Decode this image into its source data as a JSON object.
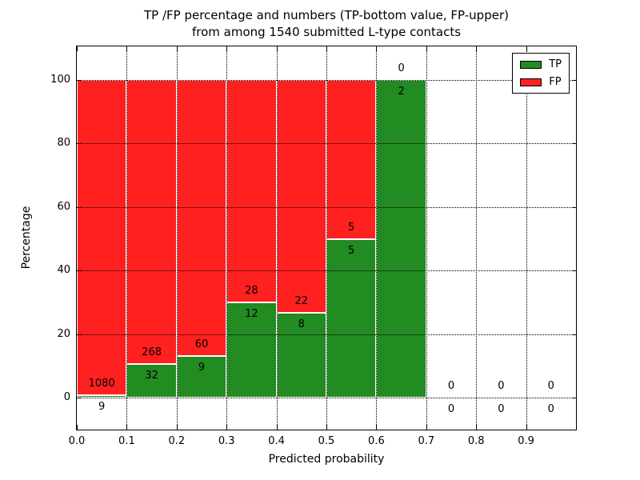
{
  "chart_data": {
    "type": "bar",
    "stacked": true,
    "normalized": "each bin scaled to 100 percent, TP bottom / FP top",
    "title_line1": "TP /FP percentage and numbers (TP-bottom value, FP-upper)",
    "title_line2": "from among 1540 submitted L-type contacts",
    "xlabel": "Predicted probability",
    "ylabel": "Percentage",
    "xlim": [
      0.0,
      1.0
    ],
    "ylim_percent": [
      -10,
      110
    ],
    "bin_width": 0.1,
    "x_tick_labels": [
      "0.0",
      "0.1",
      "0.2",
      "0.3",
      "0.4",
      "0.5",
      "0.6",
      "0.7",
      "0.8",
      "0.9"
    ],
    "y_ticks": [
      0,
      20,
      40,
      60,
      80,
      100
    ],
    "grid": "dotted both axes",
    "legend": {
      "position": "upper right",
      "entries": [
        {
          "label": "TP",
          "color": "#228b22"
        },
        {
          "label": "FP",
          "color": "#ff2020"
        }
      ]
    },
    "bins": [
      {
        "range": [
          0.0,
          0.1
        ],
        "tp": 9,
        "fp": 1080,
        "tp_percent": 0.83
      },
      {
        "range": [
          0.1,
          0.2
        ],
        "tp": 32,
        "fp": 268,
        "tp_percent": 10.67
      },
      {
        "range": [
          0.2,
          0.3
        ],
        "tp": 9,
        "fp": 60,
        "tp_percent": 13.04
      },
      {
        "range": [
          0.3,
          0.4
        ],
        "tp": 12,
        "fp": 28,
        "tp_percent": 30.0
      },
      {
        "range": [
          0.4,
          0.5
        ],
        "tp": 8,
        "fp": 22,
        "tp_percent": 26.67
      },
      {
        "range": [
          0.5,
          0.6
        ],
        "tp": 5,
        "fp": 5,
        "tp_percent": 50.0
      },
      {
        "range": [
          0.6,
          0.7
        ],
        "tp": 2,
        "fp": 0,
        "tp_percent": 100.0
      },
      {
        "range": [
          0.7,
          0.8
        ],
        "tp": 0,
        "fp": 0,
        "tp_percent": null
      },
      {
        "range": [
          0.8,
          0.9
        ],
        "tp": 0,
        "fp": 0,
        "tp_percent": null
      },
      {
        "range": [
          0.9,
          1.0
        ],
        "tp": 0,
        "fp": 0,
        "tp_percent": null
      }
    ],
    "colors": {
      "tp_bar": "#228b22",
      "fp_bar": "#ff2020",
      "bar_edge": "#ffffff",
      "grid": "#000000",
      "text": "#000000",
      "background": "#ffffff"
    }
  }
}
